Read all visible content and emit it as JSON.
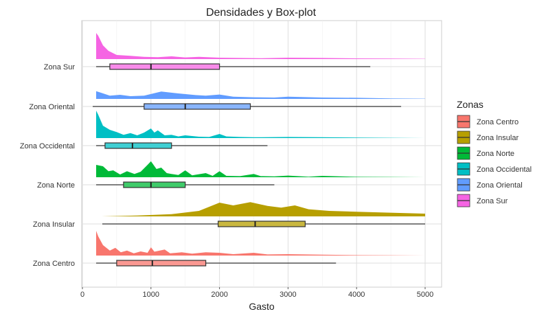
{
  "chart_data": {
    "type": "density-boxplot",
    "title": "Densidades y Box-plot",
    "xlabel": "Gasto",
    "ylabel": "",
    "xlim": [
      0,
      5000
    ],
    "x_ticks": [
      0,
      1000,
      2000,
      3000,
      4000,
      5000
    ],
    "grid": true,
    "legend_title": "Zonas",
    "legend_position": "right",
    "series": [
      {
        "name": "Zona Centro",
        "color": "#F8766D",
        "box": {
          "whisker_low": 200,
          "q1": 500,
          "median": 1020,
          "q3": 1800,
          "whisker_high": 3700
        },
        "density": [
          [
            200,
            0.9
          ],
          [
            230,
            0.7
          ],
          [
            300,
            0.38
          ],
          [
            400,
            0.18
          ],
          [
            480,
            0.28
          ],
          [
            560,
            0.12
          ],
          [
            650,
            0.18
          ],
          [
            750,
            0.08
          ],
          [
            850,
            0.15
          ],
          [
            950,
            0.1
          ],
          [
            1000,
            0.3
          ],
          [
            1050,
            0.14
          ],
          [
            1200,
            0.22
          ],
          [
            1280,
            0.08
          ],
          [
            1450,
            0.12
          ],
          [
            1600,
            0.07
          ],
          [
            1800,
            0.12
          ],
          [
            2000,
            0.1
          ],
          [
            2200,
            0.05
          ],
          [
            2500,
            0.1
          ],
          [
            2700,
            0.04
          ],
          [
            3000,
            0.05
          ],
          [
            3500,
            0.03
          ],
          [
            4000,
            0.015
          ],
          [
            4500,
            0.01
          ],
          [
            5000,
            0.0
          ]
        ]
      },
      {
        "name": "Zona Insular",
        "color": "#B79F00",
        "box": {
          "whisker_low": 290,
          "q1": 1980,
          "median": 2520,
          "q3": 3250,
          "whisker_high": 5000
        },
        "density": [
          [
            280,
            0.0
          ],
          [
            800,
            0.03
          ],
          [
            1300,
            0.08
          ],
          [
            1700,
            0.2
          ],
          [
            2000,
            0.5
          ],
          [
            2200,
            0.4
          ],
          [
            2450,
            0.52
          ],
          [
            2700,
            0.38
          ],
          [
            2900,
            0.32
          ],
          [
            3100,
            0.4
          ],
          [
            3300,
            0.26
          ],
          [
            3600,
            0.2
          ],
          [
            4000,
            0.17
          ],
          [
            4400,
            0.14
          ],
          [
            5000,
            0.1
          ]
        ]
      },
      {
        "name": "Zona Norte",
        "color": "#00BA38",
        "box": {
          "whisker_low": 200,
          "q1": 600,
          "median": 1000,
          "q3": 1500,
          "whisker_high": 2800
        },
        "density": [
          [
            200,
            0.45
          ],
          [
            300,
            0.4
          ],
          [
            380,
            0.22
          ],
          [
            450,
            0.25
          ],
          [
            550,
            0.1
          ],
          [
            650,
            0.22
          ],
          [
            760,
            0.12
          ],
          [
            850,
            0.2
          ],
          [
            950,
            0.45
          ],
          [
            1000,
            0.58
          ],
          [
            1080,
            0.3
          ],
          [
            1150,
            0.35
          ],
          [
            1230,
            0.15
          ],
          [
            1300,
            0.12
          ],
          [
            1400,
            0.08
          ],
          [
            1500,
            0.25
          ],
          [
            1600,
            0.07
          ],
          [
            1800,
            0.15
          ],
          [
            1900,
            0.05
          ],
          [
            2000,
            0.22
          ],
          [
            2100,
            0.05
          ],
          [
            2300,
            0.04
          ],
          [
            2500,
            0.12
          ],
          [
            2600,
            0.04
          ],
          [
            2800,
            0.03
          ],
          [
            3000,
            0.06
          ],
          [
            3300,
            0.02
          ],
          [
            3500,
            0.05
          ],
          [
            4000,
            0.015
          ],
          [
            4500,
            0.01
          ],
          [
            5000,
            0.0
          ]
        ]
      },
      {
        "name": "Zona Occidental",
        "color": "#00BFC4",
        "box": {
          "whisker_low": 200,
          "q1": 330,
          "median": 730,
          "q3": 1300,
          "whisker_high": 2700
        },
        "density": [
          [
            200,
            1.0
          ],
          [
            230,
            0.85
          ],
          [
            300,
            0.45
          ],
          [
            400,
            0.3
          ],
          [
            500,
            0.22
          ],
          [
            600,
            0.12
          ],
          [
            700,
            0.18
          ],
          [
            800,
            0.1
          ],
          [
            900,
            0.2
          ],
          [
            1000,
            0.35
          ],
          [
            1050,
            0.2
          ],
          [
            1100,
            0.28
          ],
          [
            1200,
            0.1
          ],
          [
            1300,
            0.12
          ],
          [
            1400,
            0.06
          ],
          [
            1500,
            0.1
          ],
          [
            1700,
            0.05
          ],
          [
            1850,
            0.04
          ],
          [
            2000,
            0.15
          ],
          [
            2100,
            0.06
          ],
          [
            2300,
            0.04
          ],
          [
            2500,
            0.03
          ],
          [
            3000,
            0.04
          ],
          [
            3500,
            0.03
          ],
          [
            4000,
            0.02
          ],
          [
            5000,
            0.0
          ]
        ]
      },
      {
        "name": "Zona Oriental",
        "color": "#619CFF",
        "box": {
          "whisker_low": 150,
          "q1": 900,
          "median": 1500,
          "q3": 2450,
          "whisker_high": 4650
        },
        "density": [
          [
            200,
            0.28
          ],
          [
            280,
            0.22
          ],
          [
            400,
            0.12
          ],
          [
            550,
            0.15
          ],
          [
            700,
            0.1
          ],
          [
            900,
            0.12
          ],
          [
            1150,
            0.27
          ],
          [
            1400,
            0.2
          ],
          [
            1650,
            0.14
          ],
          [
            1800,
            0.12
          ],
          [
            2000,
            0.16
          ],
          [
            2200,
            0.08
          ],
          [
            2500,
            0.06
          ],
          [
            2800,
            0.05
          ],
          [
            3000,
            0.08
          ],
          [
            3500,
            0.05
          ],
          [
            4000,
            0.04
          ],
          [
            4500,
            0.02
          ],
          [
            5000,
            0.01
          ]
        ]
      },
      {
        "name": "Zona Sur",
        "color": "#F564E3",
        "box": {
          "whisker_low": 200,
          "q1": 400,
          "median": 1000,
          "q3": 2000,
          "whisker_high": 4200
        },
        "density": [
          [
            200,
            0.95
          ],
          [
            230,
            0.85
          ],
          [
            300,
            0.5
          ],
          [
            380,
            0.3
          ],
          [
            500,
            0.15
          ],
          [
            700,
            0.12
          ],
          [
            900,
            0.08
          ],
          [
            1100,
            0.07
          ],
          [
            1300,
            0.1
          ],
          [
            1500,
            0.06
          ],
          [
            1700,
            0.08
          ],
          [
            2000,
            0.05
          ],
          [
            2300,
            0.04
          ],
          [
            2600,
            0.03
          ],
          [
            3000,
            0.05
          ],
          [
            3500,
            0.04
          ],
          [
            4000,
            0.025
          ],
          [
            4500,
            0.02
          ],
          [
            5000,
            0.01
          ]
        ]
      }
    ]
  }
}
